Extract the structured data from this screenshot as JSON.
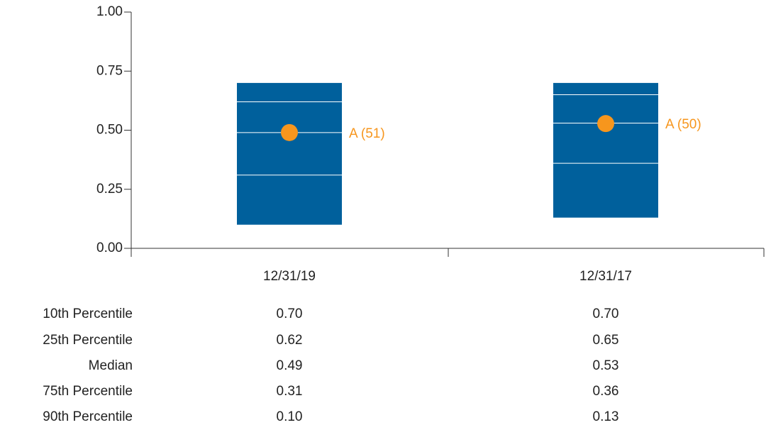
{
  "chart_data": {
    "type": "percentile_box",
    "categories": [
      "12/31/19",
      "12/31/17"
    ],
    "ylim": [
      0,
      1
    ],
    "yticks": [
      {
        "value": 0,
        "label": "0.00"
      },
      {
        "value": 0.25,
        "label": "0.25"
      },
      {
        "value": 0.5,
        "label": "0.50"
      },
      {
        "value": 0.75,
        "label": "0.75"
      },
      {
        "value": 1,
        "label": "1.00"
      }
    ],
    "color": "#00609c",
    "inner_line_color": "#ffffff",
    "series": [
      {
        "name": "10th Percentile",
        "values": [
          0.7,
          0.7
        ],
        "value_labels": [
          "0.70",
          "0.70"
        ]
      },
      {
        "name": "25th Percentile",
        "values": [
          0.62,
          0.65
        ],
        "value_labels": [
          "0.62",
          "0.65"
        ]
      },
      {
        "name": "Median",
        "values": [
          0.49,
          0.53
        ],
        "value_labels": [
          "0.49",
          "0.53"
        ]
      },
      {
        "name": "75th Percentile",
        "values": [
          0.31,
          0.36
        ],
        "value_labels": [
          "0.31",
          "0.36"
        ]
      },
      {
        "name": "90th Percentile",
        "values": [
          0.1,
          0.13
        ],
        "value_labels": [
          "0.10",
          "0.13"
        ]
      }
    ],
    "marker_values": [
      0.49,
      0.528
    ],
    "marker_labels": [
      "A (51)",
      "A (50)"
    ],
    "marker_color": "#f7961d"
  }
}
